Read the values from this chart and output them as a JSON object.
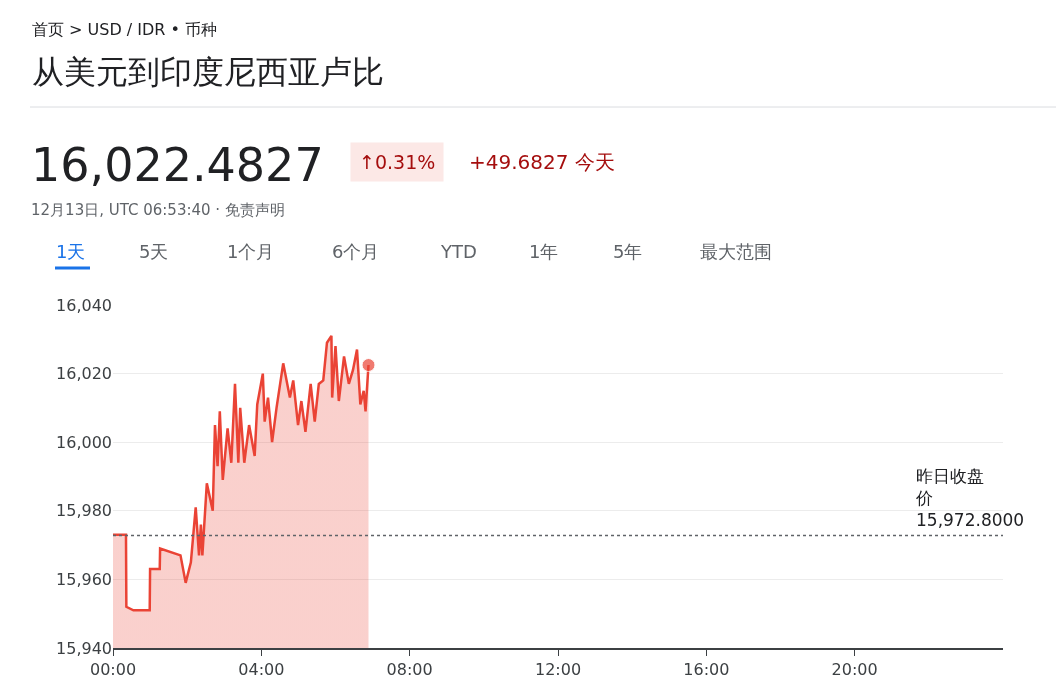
{
  "chart_data": {
    "type": "area",
    "title": "从美元到印度尼西亚卢比",
    "subtitle": "首页 > USD / IDR • 币种",
    "annotations": [
      "16,022.4827",
      "↑0.31%",
      "+49.6827 今天",
      "12月13日, UTC 06:53:40 · 免责声明",
      "1天",
      "5天",
      "1个月",
      "6个月",
      "YTD",
      "1年",
      "5年",
      "最大范围"
    ],
    "x": [
      0,
      0.35,
      0.36,
      0.55,
      0.99,
      1.0,
      1.26,
      1.27,
      1.82,
      1.96,
      2.1,
      2.23,
      2.32,
      2.37,
      2.41,
      2.53,
      2.69,
      2.75,
      2.82,
      2.88,
      2.96,
      3.09,
      3.19,
      3.29,
      3.38,
      3.43,
      3.54,
      3.67,
      3.82,
      3.89,
      4.04,
      4.09,
      4.18,
      4.29,
      4.41,
      4.59,
      4.77,
      4.86,
      4.99,
      5.08,
      5.19,
      5.33,
      5.44,
      5.55,
      5.67,
      5.77,
      5.89,
      5.91,
      6.0,
      6.09,
      6.23,
      6.36,
      6.47,
      6.58,
      6.67,
      6.76,
      6.81,
      6.89
    ],
    "series": [
      {
        "color": "#ea4335",
        "values": [
          15973,
          15973,
          15952,
          15951,
          15951,
          15963,
          15963,
          15969,
          15967,
          15959,
          15965,
          15981,
          15967,
          15976,
          15967,
          15988,
          15980,
          16005,
          15993,
          16009,
          15989,
          16004,
          15994,
          16017,
          15994,
          16010,
          15994,
          16005,
          15996,
          16011,
          16020,
          16006,
          16013,
          16000,
          16010,
          16023,
          16013,
          16018,
          16005,
          16012,
          16003,
          16017,
          16006,
          16017,
          16018,
          16029,
          16031,
          16013,
          16028,
          16012,
          16025,
          16017,
          16021,
          16027,
          16011,
          16015,
          16009,
          16022.5
        ]
      }
    ],
    "xlim": [
      0,
      24
    ],
    "xticks": [
      {
        "value": 0,
        "label": "00:00"
      },
      {
        "value": 4,
        "label": "04:00"
      },
      {
        "value": 8,
        "label": "08:00"
      },
      {
        "value": 12,
        "label": "12:00"
      },
      {
        "value": 16,
        "label": "16:00"
      },
      {
        "value": 20,
        "label": "20:00"
      }
    ],
    "ylim": [
      15940,
      16040
    ],
    "yticks": [
      {
        "value": 15940,
        "label": "15,940"
      },
      {
        "value": 15960,
        "label": "15,960"
      },
      {
        "value": 15980,
        "label": "15,980"
      },
      {
        "value": 16000,
        "label": "16,000"
      },
      {
        "value": 16020,
        "label": "16,020"
      },
      {
        "value": 16040,
        "label": "16,040"
      }
    ],
    "ref_lines": [
      {
        "axis": "y",
        "value": 15972.8,
        "label": "昨日收盘价 15,972.8000",
        "color": "#5f6368",
        "line_style": "dotted"
      }
    ],
    "grid": "y",
    "legend": false
  }
}
